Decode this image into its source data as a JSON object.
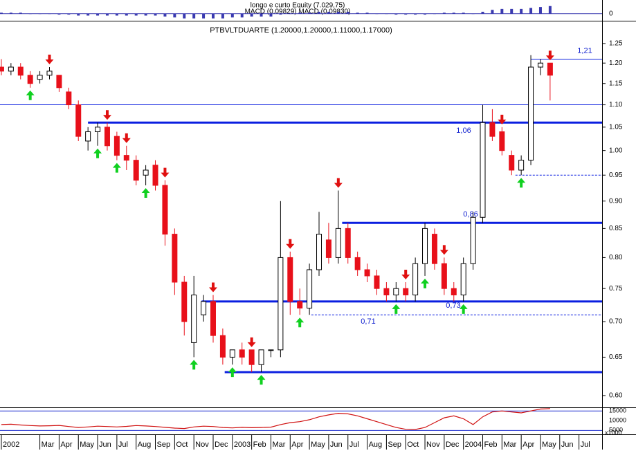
{
  "chart_data": {
    "type": "candlestick",
    "title": "PTBVLTDUARTE (1.20000,1.20000,1.11000,1.17000)",
    "log_scale": true,
    "up_color": "#ffffff",
    "down_color": "#e8101a",
    "xlim": [
      -0.07,
      31.2
    ],
    "ylim": [
      0.585,
      1.3
    ],
    "yticks": [
      {
        "value": 0.6,
        "label": "0.60"
      },
      {
        "value": 0.65,
        "label": "0.65"
      },
      {
        "value": 0.7,
        "label": "0.70"
      },
      {
        "value": 0.75,
        "label": "0.75"
      },
      {
        "value": 0.8,
        "label": "0.80"
      },
      {
        "value": 0.85,
        "label": "0.85"
      },
      {
        "value": 0.9,
        "label": "0.90"
      },
      {
        "value": 0.95,
        "label": "0.95"
      },
      {
        "value": 1.0,
        "label": "1.00"
      },
      {
        "value": 1.05,
        "label": "1.05"
      },
      {
        "value": 1.1,
        "label": "1.10"
      },
      {
        "value": 1.15,
        "label": "1.15"
      },
      {
        "value": 1.2,
        "label": "1.20"
      },
      {
        "value": 1.25,
        "label": "1.25"
      }
    ],
    "xticks": [
      {
        "value": 0,
        "label": "2002"
      },
      {
        "value": 2,
        "label": "Mar"
      },
      {
        "value": 3,
        "label": "Apr"
      },
      {
        "value": 4,
        "label": "May"
      },
      {
        "value": 5,
        "label": "Jun"
      },
      {
        "value": 6,
        "label": "Jul"
      },
      {
        "value": 7,
        "label": "Aug"
      },
      {
        "value": 8,
        "label": "Sep"
      },
      {
        "value": 9,
        "label": "Oct"
      },
      {
        "value": 10,
        "label": "Nov"
      },
      {
        "value": 11,
        "label": "Dec"
      },
      {
        "value": 12,
        "label": "2003"
      },
      {
        "value": 13,
        "label": "Feb"
      },
      {
        "value": 14,
        "label": "Mar"
      },
      {
        "value": 15,
        "label": "Apr"
      },
      {
        "value": 16,
        "label": "May"
      },
      {
        "value": 17,
        "label": "Jun"
      },
      {
        "value": 18,
        "label": "Jul"
      },
      {
        "value": 19,
        "label": "Aug"
      },
      {
        "value": 20,
        "label": "Sep"
      },
      {
        "value": 21,
        "label": "Oct"
      },
      {
        "value": 22,
        "label": "Nov"
      },
      {
        "value": 23,
        "label": "Dec"
      },
      {
        "value": 24,
        "label": "2004"
      },
      {
        "value": 25,
        "label": "Feb"
      },
      {
        "value": 26,
        "label": "Mar"
      },
      {
        "value": 27,
        "label": "Apr"
      },
      {
        "value": 28,
        "label": "May"
      },
      {
        "value": 29,
        "label": "Jun"
      },
      {
        "value": 30,
        "label": "Jul"
      }
    ],
    "x": [
      0,
      0.5,
      1,
      1.5,
      2,
      2.5,
      3,
      3.5,
      4,
      4.5,
      5,
      5.5,
      6,
      6.5,
      7,
      7.5,
      8,
      8.5,
      9,
      9.5,
      10,
      10.5,
      11,
      11.5,
      12,
      12.5,
      13,
      13.5,
      14,
      14.5,
      15,
      15.5,
      16,
      16.5,
      17,
      17.5,
      18,
      18.5,
      19,
      19.5,
      20,
      20.5,
      21,
      21.5,
      22,
      22.5,
      23,
      23.5,
      24,
      24.5,
      25,
      25.5,
      26,
      26.5,
      27,
      27.5,
      28,
      28.5
    ],
    "open": [
      1.19,
      1.18,
      1.19,
      1.17,
      1.16,
      1.17,
      1.17,
      1.13,
      1.1,
      1.02,
      1.04,
      1.05,
      1.03,
      0.99,
      0.98,
      0.95,
      0.97,
      0.93,
      0.84,
      0.76,
      0.67,
      0.71,
      0.73,
      0.68,
      0.65,
      0.66,
      0.66,
      0.64,
      0.66,
      0.66,
      0.8,
      0.73,
      0.72,
      0.78,
      0.83,
      0.8,
      0.85,
      0.8,
      0.78,
      0.77,
      0.75,
      0.74,
      0.75,
      0.74,
      0.79,
      0.84,
      0.79,
      0.75,
      0.74,
      0.79,
      0.87,
      1.06,
      1.04,
      0.99,
      0.96,
      0.98,
      1.19,
      1.2
    ],
    "high": [
      1.21,
      1.2,
      1.2,
      1.18,
      1.18,
      1.19,
      1.17,
      1.14,
      1.11,
      1.05,
      1.06,
      1.06,
      1.04,
      1.01,
      0.99,
      0.97,
      0.98,
      0.94,
      0.85,
      0.77,
      0.77,
      0.74,
      0.74,
      0.69,
      0.66,
      0.67,
      0.66,
      0.66,
      0.66,
      0.9,
      0.81,
      0.75,
      0.79,
      0.88,
      0.86,
      0.92,
      0.86,
      0.81,
      0.79,
      0.78,
      0.76,
      0.76,
      0.76,
      0.8,
      0.86,
      0.85,
      0.8,
      0.76,
      0.8,
      0.88,
      1.1,
      1.09,
      1.05,
      1.0,
      0.99,
      1.22,
      1.21,
      1.2
    ],
    "low": [
      1.17,
      1.17,
      1.16,
      1.14,
      1.15,
      1.16,
      1.13,
      1.09,
      1.02,
      1.0,
      1.01,
      1.0,
      0.98,
      0.96,
      0.93,
      0.93,
      0.92,
      0.82,
      0.74,
      0.68,
      0.65,
      0.7,
      0.67,
      0.64,
      0.64,
      0.64,
      0.63,
      0.63,
      0.65,
      0.65,
      0.71,
      0.71,
      0.71,
      0.77,
      0.79,
      0.79,
      0.79,
      0.77,
      0.76,
      0.74,
      0.73,
      0.73,
      0.73,
      0.73,
      0.77,
      0.78,
      0.74,
      0.73,
      0.73,
      0.78,
      0.86,
      1.02,
      0.99,
      0.95,
      0.95,
      0.97,
      1.17,
      1.11
    ],
    "close": [
      1.18,
      1.19,
      1.17,
      1.15,
      1.17,
      1.18,
      1.14,
      1.1,
      1.03,
      1.04,
      1.05,
      1.01,
      0.99,
      0.98,
      0.94,
      0.96,
      0.93,
      0.84,
      0.76,
      0.7,
      0.74,
      0.73,
      0.68,
      0.65,
      0.66,
      0.65,
      0.64,
      0.66,
      0.66,
      0.8,
      0.73,
      0.72,
      0.78,
      0.84,
      0.8,
      0.85,
      0.8,
      0.78,
      0.77,
      0.75,
      0.74,
      0.75,
      0.74,
      0.79,
      0.85,
      0.79,
      0.75,
      0.74,
      0.79,
      0.87,
      1.06,
      1.03,
      1.0,
      0.96,
      0.98,
      1.19,
      1.2,
      1.17
    ],
    "sell_signals": [
      2.5,
      5.5,
      6.5,
      8.5,
      11,
      13,
      15,
      17.5,
      21,
      23,
      26,
      28.5
    ],
    "buy_signals": [
      1.5,
      5,
      6,
      7.5,
      10,
      12,
      13.5,
      15.5,
      20.5,
      22,
      24,
      27
    ],
    "levels": [
      {
        "value": 1.21,
        "label": "1,21",
        "start": 27.5,
        "style": "thin"
      },
      {
        "value": 1.1,
        "style": "thin"
      },
      {
        "value": 1.06,
        "label": "1,06",
        "start": 4.5,
        "style": "thick"
      },
      {
        "value": 0.86,
        "label": "0,86",
        "start": 17.7,
        "style": "thick"
      },
      {
        "value": 0.73,
        "label": "0,73",
        "start": 10.4,
        "style": "thick"
      },
      {
        "value": 0.71,
        "label": "0,71",
        "start": 16.1,
        "style": "dashed"
      },
      {
        "value": 0.63,
        "start": 11.6,
        "style": "thick"
      },
      {
        "value": 0.95,
        "start": 26.7,
        "style": "dashed"
      }
    ],
    "top_panel": {
      "titles": [
        "longo e curto Equity (7.029,75)",
        "MACD (0.09829) MACD (0.09830)"
      ],
      "ylim": [
        -0.06,
        0.1
      ],
      "yticks": [
        0
      ],
      "color": "#3a3ab0",
      "values": [
        0.01,
        0.01,
        0.01,
        0,
        0,
        0,
        -0.01,
        -0.01,
        -0.02,
        -0.02,
        -0.02,
        -0.02,
        -0.02,
        -0.02,
        -0.02,
        -0.02,
        -0.02,
        -0.03,
        -0.04,
        -0.05,
        -0.05,
        -0.05,
        -0.05,
        -0.05,
        -0.04,
        -0.04,
        -0.03,
        -0.03,
        -0.03,
        -0.01,
        0,
        0.01,
        0.01,
        0.02,
        0.02,
        0.02,
        0.02,
        0.01,
        0.01,
        0,
        0,
        -0.01,
        -0.01,
        -0.01,
        -0.01,
        0,
        0.01,
        0.01,
        0.01,
        0,
        0.02,
        0.04,
        0.05,
        0.05,
        0.05,
        0.06,
        0.07,
        0.08
      ]
    },
    "bottom_panel": {
      "ylim": [
        3000,
        16500
      ],
      "yticks": [
        5000,
        10000,
        15000
      ],
      "unit": "x1000",
      "color": "#d01010",
      "values": [
        8000,
        8200,
        7800,
        7500,
        7300,
        7400,
        7600,
        7000,
        6500,
        6800,
        7200,
        7000,
        6800,
        7100,
        7500,
        7300,
        7000,
        6600,
        6200,
        6000,
        6800,
        7200,
        7000,
        6500,
        6300,
        6600,
        6400,
        6500,
        6700,
        8000,
        9000,
        9500,
        10500,
        12000,
        13000,
        13800,
        13500,
        12500,
        11000,
        9500,
        8000,
        6500,
        5600,
        5500,
        6500,
        9000,
        11500,
        12500,
        11000,
        8000,
        12000,
        14500,
        15000,
        14500,
        14000,
        15000,
        16000,
        16200
      ]
    }
  }
}
